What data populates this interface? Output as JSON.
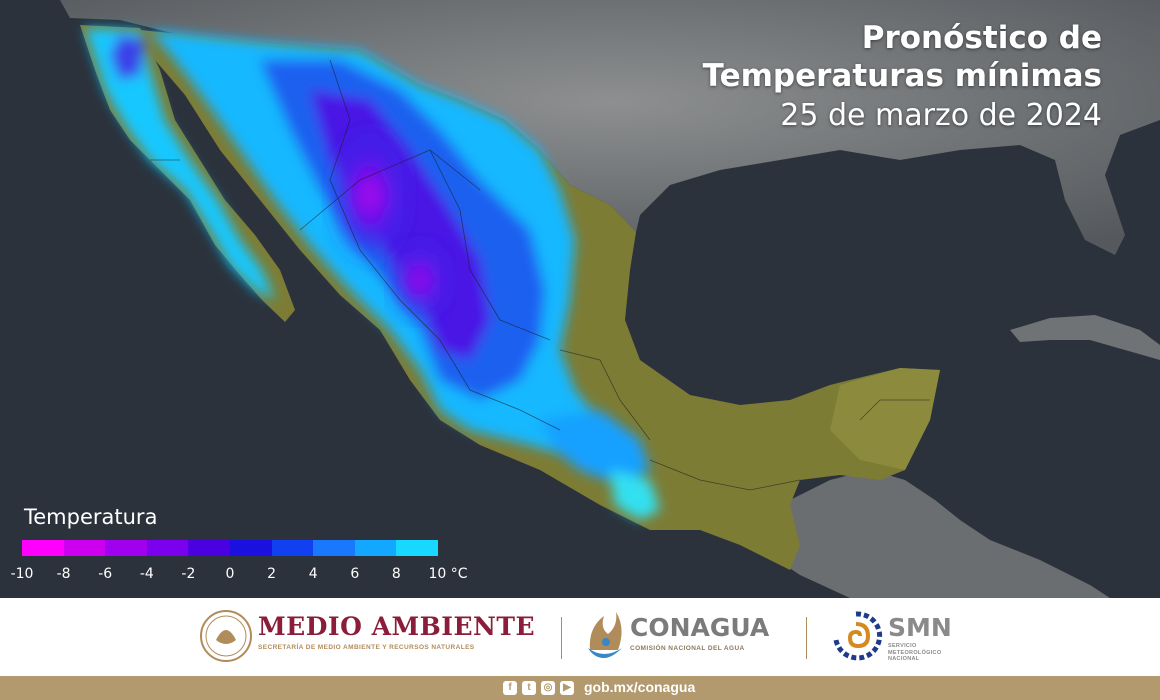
{
  "title": {
    "line1": "Pronóstico de",
    "line2": "Temperaturas mínimas",
    "date": "25 de marzo de 2024"
  },
  "legend": {
    "title": "Temperatura",
    "colors": [
      "#ff00ff",
      "#cc00ee",
      "#a000ee",
      "#7a00ee",
      "#4a00e0",
      "#1a10e0",
      "#1040f0",
      "#1a78ff",
      "#12a8ff",
      "#18d8ff",
      "#20f0f0"
    ],
    "ticks": [
      "-10",
      "-8",
      "-6",
      "-4",
      "-2",
      "0",
      "2",
      "4",
      "6",
      "8",
      "10 °C"
    ]
  },
  "footer": {
    "medio_ambiente": "MEDIO AMBIENTE",
    "medio_ambiente_sub": "SECRETARÍA DE MEDIO AMBIENTE Y RECURSOS NATURALES",
    "conagua": "CONAGUA",
    "conagua_sub": "COMISIÓN NACIONAL DEL AGUA",
    "smn": "SMN",
    "smn_sub": "SERVICIO METEOROLÓGICO NACIONAL",
    "url": "gob.mx/conagua",
    "social_icons": [
      "facebook-icon",
      "twitter-icon",
      "instagram-icon",
      "youtube-icon"
    ]
  }
}
